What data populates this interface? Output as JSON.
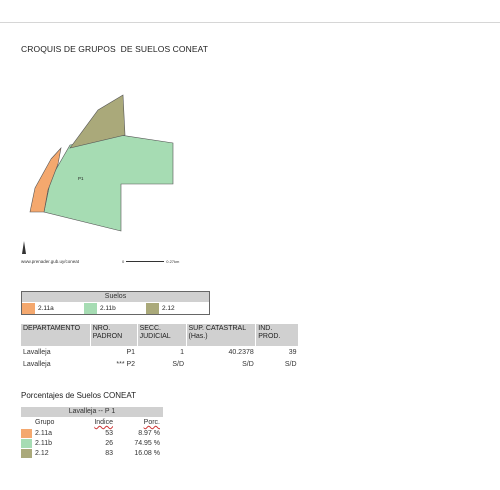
{
  "title": "CROQUIS DE GRUPOS  DE SUELOS CONEAT",
  "map": {
    "plot_label": "P1",
    "attribution": "www.prenader.gub.uy/coneat",
    "scale_label": "0.27km",
    "scale_start": "0"
  },
  "suelos": {
    "header": "Suelos",
    "items": [
      {
        "label": "2.11a",
        "color": "#f4a86e"
      },
      {
        "label": "2.11b",
        "color": "#a6dcb3"
      },
      {
        "label": "2.12",
        "color": "#aaa97a"
      }
    ]
  },
  "parcel_table": {
    "headers": {
      "departamento": "DEPARTAMENTO",
      "nro_padron": "NRO. PADRON",
      "secc_judicial": "SECC. JUDICIAL",
      "sup_catastral": "SUP. CATASTRAL (Has.)",
      "ind_prod": "IND. PROD."
    },
    "rows": [
      {
        "departamento": "Lavalleja",
        "marker": "",
        "padron": "P1",
        "secc": "1",
        "sup": "40.2378",
        "ind": "39"
      },
      {
        "departamento": "Lavalleja",
        "marker": "***",
        "padron": "P2",
        "secc": "S/D",
        "sup": "S/D",
        "ind": "S/D"
      }
    ]
  },
  "porcentajes": {
    "title": "Porcentajes de Suelos CONEAT",
    "header": "Lavalleja -- P 1",
    "col_grupo": "Grupo",
    "col_indice": "Indice",
    "col_porc": "Porc.",
    "rows": [
      {
        "grupo": "2.11a",
        "indice": "53",
        "porc": "8.97 %",
        "color": "#f4a86e"
      },
      {
        "grupo": "2.11b",
        "indice": "26",
        "porc": "74.95 %",
        "color": "#a6dcb3"
      },
      {
        "grupo": "2.12",
        "indice": "83",
        "porc": "16.08 %",
        "color": "#aaa97a"
      }
    ]
  }
}
